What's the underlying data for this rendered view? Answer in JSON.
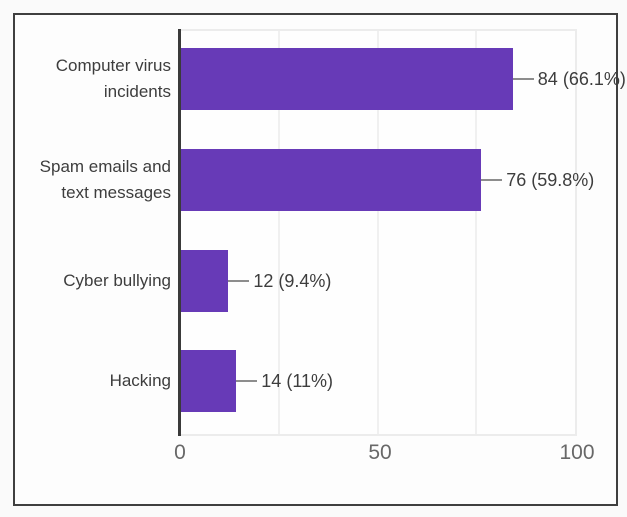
{
  "chart_data": {
    "type": "bar",
    "orientation": "horizontal",
    "title": "",
    "categories": [
      "Computer virus\nincidents",
      "Spam emails and\ntext messages",
      "Cyber bullying",
      "Hacking"
    ],
    "values": [
      84,
      76,
      12,
      14
    ],
    "percentages": [
      66.1,
      59.8,
      9.4,
      11
    ],
    "value_labels": [
      "84 (66.1%)",
      "76 (59.8%)",
      "12 (9.4%)",
      "14 (11%)"
    ],
    "x_ticks": [
      "0",
      "50",
      "100"
    ],
    "xlim": [
      0,
      100
    ],
    "xlabel": "",
    "ylabel": "",
    "grid": "vertical gridlines every 25 units",
    "legend": "none",
    "bar_color": "#673ab7",
    "axis_line_color": "#3a3a3a",
    "gridline_color": "#f0f0f0",
    "label_color": "#3d3d3d",
    "tick_color": "#686868",
    "frame_border_color": "#3f3f3f"
  }
}
